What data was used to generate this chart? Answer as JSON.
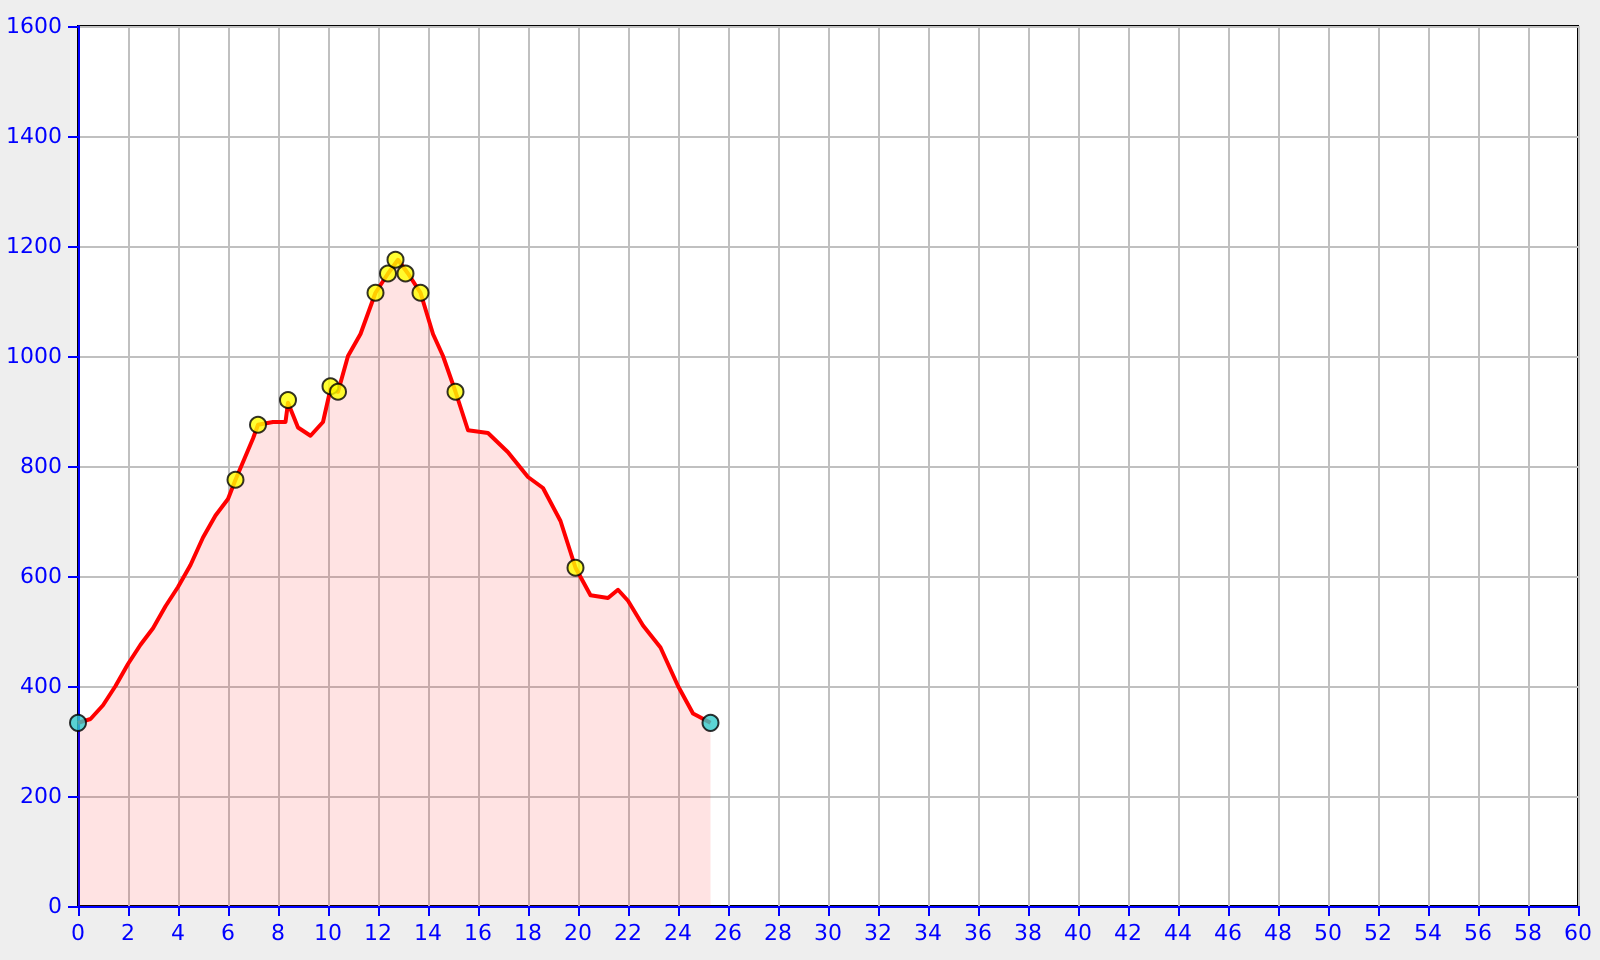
{
  "chart_data": {
    "type": "area",
    "xlim": [
      0,
      60
    ],
    "xticks": [
      0,
      2,
      4,
      6,
      8,
      10,
      12,
      14,
      16,
      18,
      20,
      22,
      24,
      26,
      28,
      30,
      32,
      34,
      36,
      38,
      40,
      42,
      44,
      46,
      48,
      50,
      52,
      54,
      56,
      58,
      60
    ],
    "ylim": [
      0,
      1600
    ],
    "yticks": [
      0,
      200,
      400,
      600,
      800,
      1000,
      1200,
      1400,
      1600
    ],
    "grid": true,
    "series": [
      {
        "color": "#ff0000",
        "marker": "none",
        "line_style": "solid",
        "x": [
          0,
          0.5,
          1,
          1.5,
          2,
          2.5,
          3,
          3.5,
          4,
          4.5,
          5,
          5.5,
          6,
          6.3,
          7,
          7.2,
          7.8,
          8.3,
          8.4,
          8.8,
          9.3,
          9.8,
          10.1,
          10.4,
          10.8,
          11.3,
          11.9,
          12.4,
          12.8,
          13.2,
          13.7,
          14.2,
          14.6,
          15.1,
          15.6,
          16.4,
          17.2,
          18,
          18.6,
          19.3,
          19.9,
          20.5,
          21.2,
          21.6,
          22,
          22.6,
          23.3,
          24,
          24.6,
          25.3
        ],
        "values": [
          333,
          340,
          365,
          400,
          440,
          475,
          505,
          545,
          580,
          620,
          670,
          710,
          740,
          775,
          850,
          875,
          880,
          880,
          915,
          870,
          855,
          880,
          940,
          935,
          1000,
          1040,
          1115,
          1150,
          1175,
          1150,
          1115,
          1040,
          1000,
          935,
          865,
          860,
          825,
          780,
          760,
          700,
          615,
          565,
          560,
          575,
          555,
          510,
          470,
          400,
          350,
          333
        ]
      },
      {
        "type": "scatter",
        "color": "#ffff00",
        "marker": "circle",
        "x": [
          6.3,
          7.2,
          8.4,
          10.1,
          10.4,
          11.9,
          12.4,
          12.7,
          13.1,
          13.7,
          15.1,
          19.9
        ],
        "values": [
          775,
          875,
          920,
          945,
          935,
          1115,
          1150,
          1175,
          1150,
          1115,
          935,
          615
        ]
      },
      {
        "type": "scatter",
        "color": "#33cccc",
        "marker": "circle",
        "x": [
          0,
          25.3
        ],
        "values": [
          333,
          333
        ]
      }
    ]
  }
}
